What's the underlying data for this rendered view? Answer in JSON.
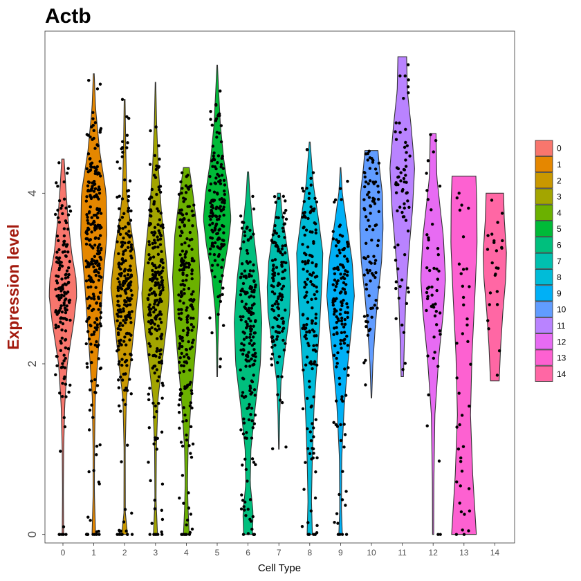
{
  "chart_data": {
    "type": "violin",
    "title": "Actb",
    "xlabel": "Cell Type",
    "ylabel": "Expression level",
    "ylabel_color": "#a31a0e",
    "ylim": [
      -0.1,
      5.9
    ],
    "y_ticks": [
      0,
      2,
      4
    ],
    "categories": [
      "0",
      "1",
      "2",
      "3",
      "4",
      "5",
      "6",
      "7",
      "8",
      "9",
      "10",
      "11",
      "12",
      "13",
      "14"
    ],
    "colors": [
      "#F8766D",
      "#E58700",
      "#C99800",
      "#A3A500",
      "#6BB100",
      "#00BA38",
      "#00BF7D",
      "#00C0AF",
      "#00BCD8",
      "#00B0F6",
      "#619CFF",
      "#B983FF",
      "#E76BF3",
      "#FD61D1",
      "#FF67A4"
    ],
    "legend_position": "right",
    "violins": [
      {
        "category": "0",
        "ymin": 0.0,
        "ymax": 4.4,
        "density": [
          [
            0.0,
            0.05
          ],
          [
            0.5,
            0.03
          ],
          [
            1.0,
            0.05
          ],
          [
            1.5,
            0.12
          ],
          [
            2.0,
            0.3
          ],
          [
            2.5,
            0.75
          ],
          [
            2.8,
            0.95
          ],
          [
            3.0,
            0.9
          ],
          [
            3.3,
            0.6
          ],
          [
            3.7,
            0.35
          ],
          [
            4.0,
            0.22
          ],
          [
            4.4,
            0.08
          ]
        ],
        "points": 160
      },
      {
        "category": "1",
        "ymin": 0.0,
        "ymax": 5.4,
        "density": [
          [
            0.0,
            0.12
          ],
          [
            0.5,
            0.04
          ],
          [
            1.0,
            0.05
          ],
          [
            1.6,
            0.1
          ],
          [
            2.0,
            0.25
          ],
          [
            2.5,
            0.45
          ],
          [
            3.0,
            0.65
          ],
          [
            3.5,
            0.9
          ],
          [
            4.0,
            0.85
          ],
          [
            4.5,
            0.4
          ],
          [
            5.0,
            0.12
          ],
          [
            5.4,
            0.03
          ]
        ],
        "points": 260
      },
      {
        "category": "2",
        "ymin": 0.0,
        "ymax": 5.1,
        "density": [
          [
            0.0,
            0.2
          ],
          [
            0.25,
            0.05
          ],
          [
            1.0,
            0.04
          ],
          [
            1.6,
            0.12
          ],
          [
            2.0,
            0.4
          ],
          [
            2.5,
            0.7
          ],
          [
            2.9,
            0.95
          ],
          [
            3.3,
            0.7
          ],
          [
            3.7,
            0.35
          ],
          [
            4.0,
            0.15
          ],
          [
            4.5,
            0.08
          ],
          [
            5.1,
            0.03
          ]
        ],
        "points": 230
      },
      {
        "category": "3",
        "ymin": 0.0,
        "ymax": 5.3,
        "density": [
          [
            0.0,
            0.14
          ],
          [
            0.4,
            0.04
          ],
          [
            1.0,
            0.06
          ],
          [
            1.6,
            0.18
          ],
          [
            2.0,
            0.45
          ],
          [
            2.5,
            0.8
          ],
          [
            2.8,
            0.95
          ],
          [
            3.3,
            0.7
          ],
          [
            3.8,
            0.4
          ],
          [
            4.3,
            0.2
          ],
          [
            4.8,
            0.08
          ],
          [
            5.3,
            0.02
          ]
        ],
        "points": 230
      },
      {
        "category": "4",
        "ymin": 0.0,
        "ymax": 4.3,
        "density": [
          [
            0.0,
            0.2
          ],
          [
            0.3,
            0.12
          ],
          [
            0.6,
            0.08
          ],
          [
            1.0,
            0.12
          ],
          [
            1.5,
            0.3
          ],
          [
            2.0,
            0.55
          ],
          [
            2.5,
            0.8
          ],
          [
            3.0,
            0.95
          ],
          [
            3.5,
            0.8
          ],
          [
            4.0,
            0.45
          ],
          [
            4.3,
            0.2
          ]
        ],
        "points": 210
      },
      {
        "category": "5",
        "ymin": 1.85,
        "ymax": 5.5,
        "density": [
          [
            1.85,
            0.02
          ],
          [
            2.2,
            0.05
          ],
          [
            2.6,
            0.12
          ],
          [
            3.0,
            0.35
          ],
          [
            3.4,
            0.75
          ],
          [
            3.7,
            0.95
          ],
          [
            4.0,
            0.8
          ],
          [
            4.4,
            0.45
          ],
          [
            4.8,
            0.22
          ],
          [
            5.2,
            0.1
          ],
          [
            5.5,
            0.02
          ]
        ],
        "points": 150
      },
      {
        "category": "6",
        "ymin": 0.0,
        "ymax": 4.25,
        "density": [
          [
            0.0,
            0.3
          ],
          [
            0.25,
            0.35
          ],
          [
            0.6,
            0.15
          ],
          [
            1.0,
            0.2
          ],
          [
            1.5,
            0.5
          ],
          [
            2.0,
            0.85
          ],
          [
            2.5,
            0.95
          ],
          [
            3.0,
            0.75
          ],
          [
            3.5,
            0.4
          ],
          [
            4.0,
            0.12
          ],
          [
            4.25,
            0.04
          ]
        ],
        "points": 190
      },
      {
        "category": "7",
        "ymin": 1.0,
        "ymax": 4.0,
        "density": [
          [
            1.0,
            0.02
          ],
          [
            1.4,
            0.06
          ],
          [
            1.8,
            0.15
          ],
          [
            2.2,
            0.45
          ],
          [
            2.6,
            0.75
          ],
          [
            2.9,
            0.8
          ],
          [
            3.2,
            0.7
          ],
          [
            3.5,
            0.45
          ],
          [
            3.8,
            0.2
          ],
          [
            4.0,
            0.1
          ]
        ],
        "points": 130
      },
      {
        "category": "8",
        "ymin": 0.0,
        "ymax": 4.6,
        "density": [
          [
            0.0,
            0.18
          ],
          [
            0.4,
            0.12
          ],
          [
            0.9,
            0.18
          ],
          [
            1.5,
            0.3
          ],
          [
            2.0,
            0.5
          ],
          [
            2.5,
            0.7
          ],
          [
            3.0,
            0.85
          ],
          [
            3.3,
            0.9
          ],
          [
            3.7,
            0.6
          ],
          [
            4.1,
            0.25
          ],
          [
            4.6,
            0.03
          ]
        ],
        "points": 150
      },
      {
        "category": "9",
        "ymin": 0.0,
        "ymax": 4.3,
        "density": [
          [
            0.0,
            0.12
          ],
          [
            0.3,
            0.06
          ],
          [
            0.9,
            0.08
          ],
          [
            1.5,
            0.25
          ],
          [
            2.0,
            0.5
          ],
          [
            2.5,
            0.8
          ],
          [
            2.8,
            0.95
          ],
          [
            3.2,
            0.8
          ],
          [
            3.6,
            0.45
          ],
          [
            4.0,
            0.12
          ],
          [
            4.3,
            0.02
          ]
        ],
        "points": 140
      },
      {
        "category": "10",
        "ymin": 1.6,
        "ymax": 4.5,
        "density": [
          [
            1.6,
            0.02
          ],
          [
            2.0,
            0.1
          ],
          [
            2.4,
            0.25
          ],
          [
            2.8,
            0.45
          ],
          [
            3.2,
            0.7
          ],
          [
            3.6,
            0.8
          ],
          [
            4.0,
            0.75
          ],
          [
            4.3,
            0.55
          ],
          [
            4.5,
            0.45
          ]
        ],
        "points": 90
      },
      {
        "category": "11",
        "ymin": 1.85,
        "ymax": 5.6,
        "density": [
          [
            1.85,
            0.08
          ],
          [
            2.3,
            0.15
          ],
          [
            2.8,
            0.25
          ],
          [
            3.3,
            0.45
          ],
          [
            3.8,
            0.7
          ],
          [
            4.3,
            0.85
          ],
          [
            4.8,
            0.6
          ],
          [
            5.2,
            0.35
          ],
          [
            5.6,
            0.3
          ]
        ],
        "points": 70
      },
      {
        "category": "12",
        "ymin": 0.0,
        "ymax": 4.7,
        "density": [
          [
            0.0,
            0.04
          ],
          [
            0.6,
            0.05
          ],
          [
            1.4,
            0.12
          ],
          [
            2.1,
            0.4
          ],
          [
            2.6,
            0.7
          ],
          [
            3.0,
            0.85
          ],
          [
            3.5,
            0.7
          ],
          [
            3.8,
            0.5
          ],
          [
            4.2,
            0.25
          ],
          [
            4.7,
            0.2
          ]
        ],
        "points": 50
      },
      {
        "category": "13",
        "ymin": 0.0,
        "ymax": 4.2,
        "density": [
          [
            0.0,
            0.85
          ],
          [
            0.7,
            0.6
          ],
          [
            1.4,
            0.45
          ],
          [
            2.1,
            0.55
          ],
          [
            2.8,
            0.75
          ],
          [
            3.4,
            0.9
          ],
          [
            3.9,
            0.88
          ],
          [
            4.2,
            0.82
          ]
        ],
        "points": 40
      },
      {
        "category": "14",
        "ymin": 1.8,
        "ymax": 4.0,
        "density": [
          [
            1.8,
            0.3
          ],
          [
            2.2,
            0.4
          ],
          [
            2.6,
            0.55
          ],
          [
            3.0,
            0.75
          ],
          [
            3.3,
            0.8
          ],
          [
            3.7,
            0.65
          ],
          [
            4.0,
            0.6
          ]
        ],
        "points": 25
      }
    ]
  }
}
